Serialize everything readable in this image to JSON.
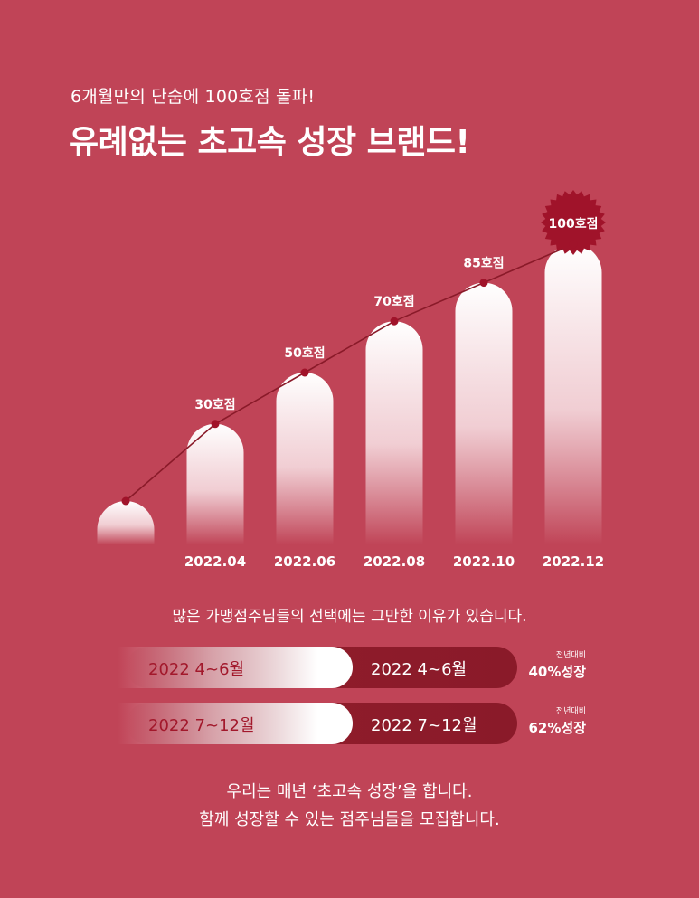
{
  "header": {
    "subtitle": "6개월만의 단숨에 100호점 돌파!",
    "title": "유례없는 초고속 성장 브랜드!"
  },
  "chart_data": {
    "type": "bar",
    "categories": [
      "",
      "2022.04",
      "2022.06",
      "2022.08",
      "2022.10",
      "2022.12"
    ],
    "values": [
      0,
      30,
      50,
      70,
      85,
      100
    ],
    "labels": [
      "",
      "30호점",
      "50호점",
      "70호점",
      "85호점",
      "100호점"
    ],
    "highlight_last": true
  },
  "colors": {
    "background": "#c04457",
    "accent_dark": "#8a1a29",
    "dot": "#a0132a",
    "badge": "#a0132a"
  },
  "intro": "많은 가맹점주님들의 선택에는 그만한 이유가 있습니다.",
  "comparisons": [
    {
      "left_label": "2022 4~6월",
      "right_label": "2022 4~6월",
      "growth_caption": "전년대비",
      "growth_value": "40%성장"
    },
    {
      "left_label": "2022 7~12월",
      "right_label": "2022 7~12월",
      "growth_caption": "전년대비",
      "growth_value": "62%성장"
    }
  ],
  "outro": {
    "line1": "우리는 매년 ‘초고속 성장’을 합니다.",
    "line2": "함께 성장할 수 있는 점주님들을 모집합니다."
  }
}
